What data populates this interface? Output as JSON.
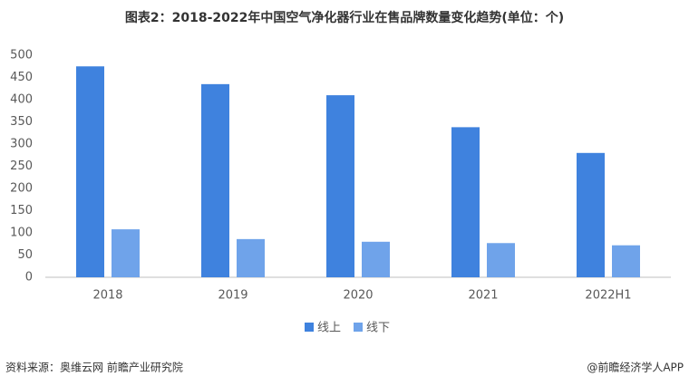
{
  "chart_data": {
    "type": "bar",
    "title": "图表2：2018-2022年中国空气净化器行业在售品牌数量变化趋势(单位：个)",
    "categories": [
      "2018",
      "2019",
      "2020",
      "2021",
      "2022H1"
    ],
    "series": [
      {
        "name": "线上",
        "color": "#3f82de",
        "values": [
          475,
          435,
          410,
          338,
          280
        ]
      },
      {
        "name": "线下",
        "color": "#6fa3ea",
        "values": [
          108,
          86,
          80,
          77,
          72
        ]
      }
    ],
    "ylim": [
      0,
      500
    ],
    "yticks": [
      0,
      50,
      100,
      150,
      200,
      250,
      300,
      350,
      400,
      450,
      500
    ],
    "grid": false
  },
  "footer": {
    "source": "资料来源：奥维云网 前瞻产业研究院",
    "credit": "@前瞻经济学人APP"
  }
}
